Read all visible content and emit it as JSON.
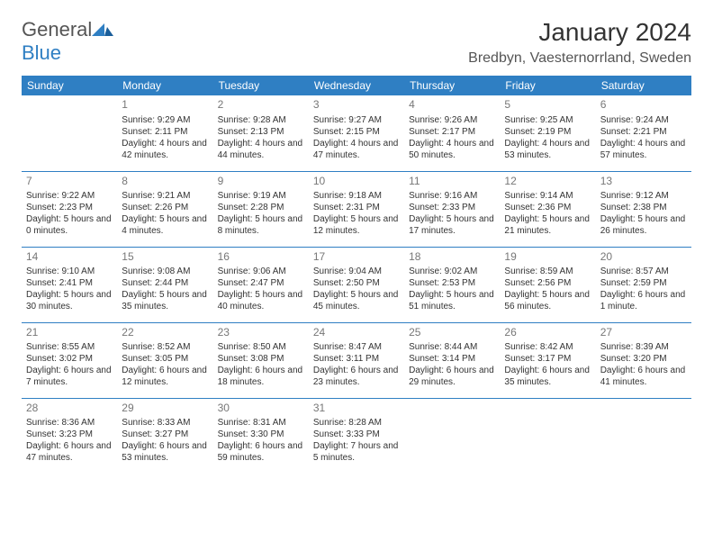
{
  "logo": {
    "word1": "General",
    "word2": "Blue"
  },
  "title": "January 2024",
  "location": "Bredbyn, Vaesternorrland, Sweden",
  "colors": {
    "header_bg": "#2f7fc3",
    "header_text": "#ffffff",
    "row_divider": "#2f7fc3",
    "daynum": "#777777",
    "body_text": "#333333",
    "logo_gray": "#555555",
    "logo_blue": "#2f7fc3",
    "background": "#ffffff"
  },
  "typography": {
    "title_fontsize": 28,
    "location_fontsize": 16,
    "dayheader_fontsize": 12,
    "daynum_fontsize": 12,
    "body_fontsize": 10
  },
  "days_of_week": [
    "Sunday",
    "Monday",
    "Tuesday",
    "Wednesday",
    "Thursday",
    "Friday",
    "Saturday"
  ],
  "weeks": [
    [
      null,
      {
        "n": "1",
        "sunrise": "9:29 AM",
        "sunset": "2:11 PM",
        "daylight": "4 hours and 42 minutes."
      },
      {
        "n": "2",
        "sunrise": "9:28 AM",
        "sunset": "2:13 PM",
        "daylight": "4 hours and 44 minutes."
      },
      {
        "n": "3",
        "sunrise": "9:27 AM",
        "sunset": "2:15 PM",
        "daylight": "4 hours and 47 minutes."
      },
      {
        "n": "4",
        "sunrise": "9:26 AM",
        "sunset": "2:17 PM",
        "daylight": "4 hours and 50 minutes."
      },
      {
        "n": "5",
        "sunrise": "9:25 AM",
        "sunset": "2:19 PM",
        "daylight": "4 hours and 53 minutes."
      },
      {
        "n": "6",
        "sunrise": "9:24 AM",
        "sunset": "2:21 PM",
        "daylight": "4 hours and 57 minutes."
      }
    ],
    [
      {
        "n": "7",
        "sunrise": "9:22 AM",
        "sunset": "2:23 PM",
        "daylight": "5 hours and 0 minutes."
      },
      {
        "n": "8",
        "sunrise": "9:21 AM",
        "sunset": "2:26 PM",
        "daylight": "5 hours and 4 minutes."
      },
      {
        "n": "9",
        "sunrise": "9:19 AM",
        "sunset": "2:28 PM",
        "daylight": "5 hours and 8 minutes."
      },
      {
        "n": "10",
        "sunrise": "9:18 AM",
        "sunset": "2:31 PM",
        "daylight": "5 hours and 12 minutes."
      },
      {
        "n": "11",
        "sunrise": "9:16 AM",
        "sunset": "2:33 PM",
        "daylight": "5 hours and 17 minutes."
      },
      {
        "n": "12",
        "sunrise": "9:14 AM",
        "sunset": "2:36 PM",
        "daylight": "5 hours and 21 minutes."
      },
      {
        "n": "13",
        "sunrise": "9:12 AM",
        "sunset": "2:38 PM",
        "daylight": "5 hours and 26 minutes."
      }
    ],
    [
      {
        "n": "14",
        "sunrise": "9:10 AM",
        "sunset": "2:41 PM",
        "daylight": "5 hours and 30 minutes."
      },
      {
        "n": "15",
        "sunrise": "9:08 AM",
        "sunset": "2:44 PM",
        "daylight": "5 hours and 35 minutes."
      },
      {
        "n": "16",
        "sunrise": "9:06 AM",
        "sunset": "2:47 PM",
        "daylight": "5 hours and 40 minutes."
      },
      {
        "n": "17",
        "sunrise": "9:04 AM",
        "sunset": "2:50 PM",
        "daylight": "5 hours and 45 minutes."
      },
      {
        "n": "18",
        "sunrise": "9:02 AM",
        "sunset": "2:53 PM",
        "daylight": "5 hours and 51 minutes."
      },
      {
        "n": "19",
        "sunrise": "8:59 AM",
        "sunset": "2:56 PM",
        "daylight": "5 hours and 56 minutes."
      },
      {
        "n": "20",
        "sunrise": "8:57 AM",
        "sunset": "2:59 PM",
        "daylight": "6 hours and 1 minute."
      }
    ],
    [
      {
        "n": "21",
        "sunrise": "8:55 AM",
        "sunset": "3:02 PM",
        "daylight": "6 hours and 7 minutes."
      },
      {
        "n": "22",
        "sunrise": "8:52 AM",
        "sunset": "3:05 PM",
        "daylight": "6 hours and 12 minutes."
      },
      {
        "n": "23",
        "sunrise": "8:50 AM",
        "sunset": "3:08 PM",
        "daylight": "6 hours and 18 minutes."
      },
      {
        "n": "24",
        "sunrise": "8:47 AM",
        "sunset": "3:11 PM",
        "daylight": "6 hours and 23 minutes."
      },
      {
        "n": "25",
        "sunrise": "8:44 AM",
        "sunset": "3:14 PM",
        "daylight": "6 hours and 29 minutes."
      },
      {
        "n": "26",
        "sunrise": "8:42 AM",
        "sunset": "3:17 PM",
        "daylight": "6 hours and 35 minutes."
      },
      {
        "n": "27",
        "sunrise": "8:39 AM",
        "sunset": "3:20 PM",
        "daylight": "6 hours and 41 minutes."
      }
    ],
    [
      {
        "n": "28",
        "sunrise": "8:36 AM",
        "sunset": "3:23 PM",
        "daylight": "6 hours and 47 minutes."
      },
      {
        "n": "29",
        "sunrise": "8:33 AM",
        "sunset": "3:27 PM",
        "daylight": "6 hours and 53 minutes."
      },
      {
        "n": "30",
        "sunrise": "8:31 AM",
        "sunset": "3:30 PM",
        "daylight": "6 hours and 59 minutes."
      },
      {
        "n": "31",
        "sunrise": "8:28 AM",
        "sunset": "3:33 PM",
        "daylight": "7 hours and 5 minutes."
      },
      null,
      null,
      null
    ]
  ],
  "labels": {
    "sunrise": "Sunrise: ",
    "sunset": "Sunset: ",
    "daylight": "Daylight: "
  }
}
